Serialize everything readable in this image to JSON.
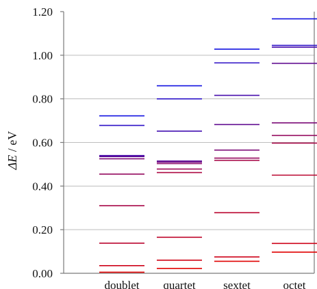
{
  "chart_data": {
    "type": "scatter",
    "ylabel_main": "ΔE",
    "ylabel_sep": " / ",
    "ylabel_unit": "eV",
    "ylim": [
      0,
      1.2
    ],
    "yticks": [
      "0.00",
      "0.20",
      "0.40",
      "0.60",
      "0.80",
      "1.00",
      "1.20"
    ],
    "grid": true,
    "categories": [
      "doublet",
      "quartet",
      "sextet",
      "octet"
    ],
    "levels": [
      [
        0.005,
        0.035,
        0.138,
        0.31,
        0.455,
        0.525,
        0.535,
        0.54,
        0.678,
        0.722
      ],
      [
        0.022,
        0.06,
        0.165,
        0.462,
        0.478,
        0.503,
        0.51,
        0.515,
        0.652,
        0.8,
        0.86
      ],
      [
        0.055,
        0.075,
        0.278,
        0.518,
        0.528,
        0.565,
        0.682,
        0.816,
        0.965,
        1.028
      ],
      [
        0.097,
        0.137,
        0.45,
        0.597,
        0.632,
        0.69,
        0.963,
        1.037,
        1.045,
        1.167
      ]
    ],
    "color_low": "#e00000",
    "color_mid": "#8a0a6a",
    "color_high": "#1010e0"
  }
}
